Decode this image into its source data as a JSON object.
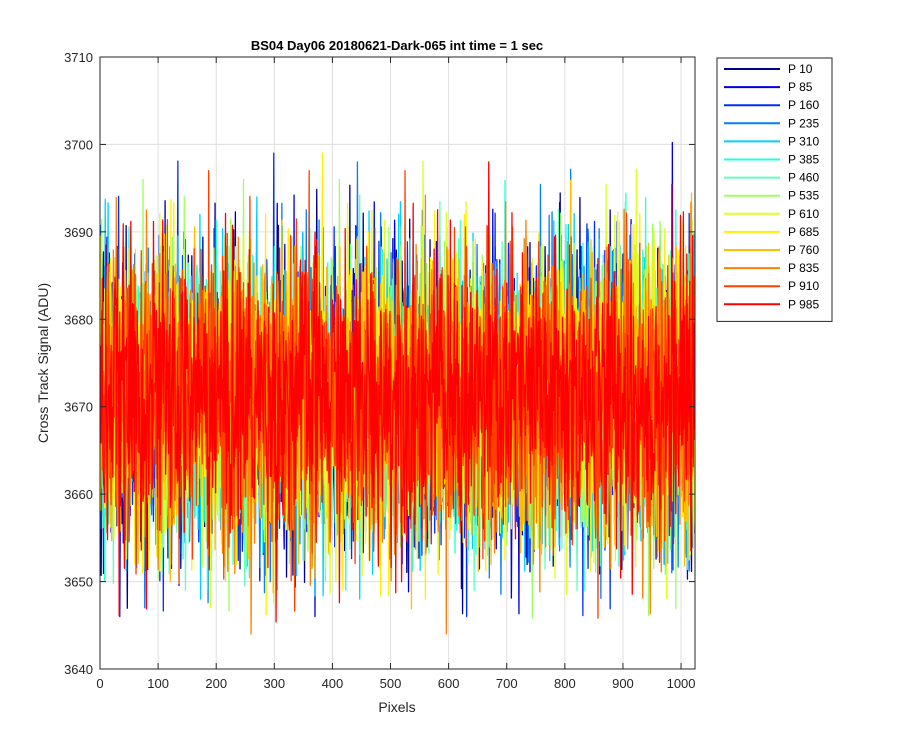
{
  "chart_data": {
    "type": "line",
    "title": "BS04 Day06 20180621-Dark-065 int time = 1 sec",
    "xlabel": "Pixels",
    "ylabel": "Cross Track Signal (ADU)",
    "xlim": [
      0,
      1024
    ],
    "ylim": [
      3640,
      3710
    ],
    "xticks": [
      0,
      100,
      200,
      300,
      400,
      500,
      600,
      700,
      800,
      900,
      1000
    ],
    "yticks": [
      3640,
      3650,
      3660,
      3670,
      3680,
      3690,
      3700,
      3710
    ],
    "grid": true,
    "legend_position": "outside-top-right",
    "n_points": 1024,
    "series": [
      {
        "name": "P 10",
        "color": "#00008F",
        "mean": 3671,
        "min": 3646,
        "max": 3697
      },
      {
        "name": "P 85",
        "color": "#0000DF",
        "mean": 3671,
        "min": 3646,
        "max": 3702
      },
      {
        "name": "P 160",
        "color": "#0030FF",
        "mean": 3671,
        "min": 3646,
        "max": 3699
      },
      {
        "name": "P 235",
        "color": "#0080FF",
        "mean": 3671,
        "min": 3647,
        "max": 3698
      },
      {
        "name": "P 310",
        "color": "#00CFFF",
        "mean": 3671,
        "min": 3648,
        "max": 3694
      },
      {
        "name": "P 385",
        "color": "#20FFDF",
        "mean": 3671,
        "min": 3649,
        "max": 3696
      },
      {
        "name": "P 460",
        "color": "#60FFBF",
        "mean": 3671,
        "min": 3649,
        "max": 3695
      },
      {
        "name": "P 535",
        "color": "#9FFF60",
        "mean": 3671,
        "min": 3643,
        "max": 3696
      },
      {
        "name": "P 610",
        "color": "#DFFF20",
        "mean": 3671,
        "min": 3647,
        "max": 3699
      },
      {
        "name": "P 685",
        "color": "#FFF000",
        "mean": 3671,
        "min": 3645,
        "max": 3699
      },
      {
        "name": "P 760",
        "color": "#FFBF00",
        "mean": 3671,
        "min": 3642,
        "max": 3697
      },
      {
        "name": "P 835",
        "color": "#FF8000",
        "mean": 3671,
        "min": 3644,
        "max": 3696
      },
      {
        "name": "P 910",
        "color": "#FF4000",
        "mean": 3671,
        "min": 3644,
        "max": 3697
      },
      {
        "name": "P 985",
        "color": "#FF0000",
        "mean": 3671,
        "min": 3643,
        "max": 3698
      }
    ]
  }
}
